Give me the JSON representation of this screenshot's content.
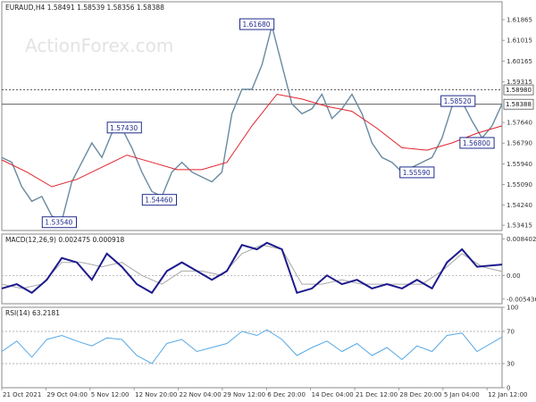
{
  "watermark": "ActionForex.com",
  "chart_data": {
    "type": "line",
    "colors": {
      "price": "#6a8aa0",
      "ma": "#e0222a",
      "macd": "#1c1a8c",
      "signal": "#a8a8a8",
      "rsi": "#55a8e6",
      "hline": "#4a4a4a",
      "annotation": "#1f2b8c"
    },
    "x_labels": [
      "21 Oct 2021",
      "29 Oct 04:00",
      "5 Nov 12:00",
      "12 Nov 20:00",
      "22 Nov 04:00",
      "29 Nov 12:00",
      "6 Dec 20:00",
      "14 Dec 04:00",
      "21 Dec 12:00",
      "28 Dec 20:00",
      "5 Jan 04:00",
      "12 Jan 12:00"
    ],
    "main": {
      "header": "EURAUD,H4  1.58491 1.58539 1.58356 1.58388",
      "ylim": [
        1.532,
        1.626
      ],
      "y_ticks": [
        "1.61865",
        "1.61015",
        "1.60165",
        "1.59315",
        "1.57640",
        "1.56790",
        "1.55940",
        "1.55090",
        "1.54240",
        "1.53415"
      ],
      "y_tick_values": [
        1.61865,
        1.61015,
        1.60165,
        1.59315,
        1.5764,
        1.5679,
        1.5594,
        1.5509,
        1.5424,
        1.53415
      ],
      "price_boxes": [
        "1.58980",
        "1.58388"
      ],
      "price_box_values": [
        1.5898,
        1.58388
      ],
      "hlines": [
        1.5898,
        1.58388
      ],
      "annotations": [
        {
          "label": "1.61680",
          "x": 0.51,
          "y": 1.6168
        },
        {
          "label": "1.57430",
          "x": 0.245,
          "y": 1.5743
        },
        {
          "label": "1.54460",
          "x": 0.315,
          "y": 1.5446
        },
        {
          "label": "1.53540",
          "x": 0.115,
          "y": 1.5354
        },
        {
          "label": "1.58520",
          "x": 0.912,
          "y": 1.5852
        },
        {
          "label": "1.56800",
          "x": 0.95,
          "y": 1.568
        },
        {
          "label": "1.55590",
          "x": 0.83,
          "y": 1.5559
        }
      ],
      "series": [
        {
          "name": "EURAUD",
          "x": [
            0,
            0.02,
            0.04,
            0.06,
            0.08,
            0.1,
            0.12,
            0.14,
            0.16,
            0.18,
            0.2,
            0.22,
            0.24,
            0.26,
            0.28,
            0.3,
            0.32,
            0.34,
            0.36,
            0.38,
            0.4,
            0.42,
            0.44,
            0.46,
            0.48,
            0.5,
            0.52,
            0.54,
            0.56,
            0.58,
            0.6,
            0.62,
            0.64,
            0.66,
            0.68,
            0.7,
            0.72,
            0.74,
            0.76,
            0.78,
            0.8,
            0.82,
            0.84,
            0.86,
            0.88,
            0.9,
            0.92,
            0.94,
            0.96,
            0.98,
            1.0
          ],
          "y": [
            1.562,
            1.56,
            1.55,
            1.544,
            1.546,
            1.538,
            1.536,
            1.552,
            1.56,
            1.568,
            1.562,
            1.572,
            1.574,
            1.566,
            1.556,
            1.548,
            1.546,
            1.556,
            1.56,
            1.556,
            1.554,
            1.552,
            1.556,
            1.58,
            1.59,
            1.59,
            1.6,
            1.616,
            1.6,
            1.584,
            1.58,
            1.582,
            1.588,
            1.578,
            1.582,
            1.588,
            1.58,
            1.568,
            1.562,
            1.56,
            1.556,
            1.558,
            1.56,
            1.562,
            1.57,
            1.583,
            1.585,
            1.577,
            1.57,
            1.575,
            1.584
          ]
        },
        {
          "name": "MA",
          "x": [
            0,
            0.05,
            0.1,
            0.15,
            0.2,
            0.25,
            0.3,
            0.35,
            0.4,
            0.45,
            0.5,
            0.55,
            0.6,
            0.65,
            0.7,
            0.75,
            0.8,
            0.85,
            0.9,
            0.95,
            1.0
          ],
          "y": [
            1.561,
            1.556,
            1.55,
            1.553,
            1.558,
            1.563,
            1.56,
            1.557,
            1.557,
            1.56,
            1.575,
            1.588,
            1.586,
            1.583,
            1.581,
            1.574,
            1.566,
            1.565,
            1.568,
            1.572,
            1.575
          ]
        }
      ]
    },
    "macd": {
      "header": "MACD(12,26,9) 0.002475 0.000918",
      "ylim": [
        -0.0065,
        0.0095
      ],
      "y_ticks": [
        "0.008402",
        "0.00",
        "-0.005436"
      ],
      "y_tick_values": [
        0.008402,
        0.0,
        -0.005436
      ],
      "zero_label": "0.00",
      "series": [
        {
          "name": "MACD",
          "x": [
            0,
            0.03,
            0.06,
            0.09,
            0.12,
            0.15,
            0.18,
            0.21,
            0.24,
            0.27,
            0.3,
            0.33,
            0.36,
            0.39,
            0.42,
            0.45,
            0.48,
            0.51,
            0.53,
            0.56,
            0.59,
            0.62,
            0.65,
            0.68,
            0.71,
            0.74,
            0.77,
            0.8,
            0.83,
            0.86,
            0.89,
            0.92,
            0.95,
            1.0
          ],
          "y": [
            -0.003,
            -0.002,
            -0.004,
            -0.001,
            0.004,
            0.003,
            -0.001,
            0.005,
            0.002,
            -0.002,
            -0.004,
            0.001,
            0.003,
            0.001,
            -0.001,
            0.001,
            0.007,
            0.006,
            0.0075,
            0.006,
            -0.004,
            -0.003,
            0.0,
            -0.002,
            -0.001,
            -0.003,
            -0.002,
            -0.003,
            -0.001,
            -0.003,
            0.003,
            0.006,
            0.002,
            0.0025
          ]
        },
        {
          "name": "Signal",
          "x": [
            0,
            0.04,
            0.08,
            0.12,
            0.16,
            0.2,
            0.24,
            0.28,
            0.32,
            0.36,
            0.4,
            0.44,
            0.48,
            0.52,
            0.56,
            0.6,
            0.64,
            0.68,
            0.72,
            0.76,
            0.8,
            0.84,
            0.88,
            0.92,
            0.96,
            1.0
          ],
          "y": [
            -0.002,
            -0.003,
            -0.002,
            0.003,
            0.003,
            0.002,
            0.003,
            0.0,
            -0.002,
            0.001,
            0.001,
            0.0,
            0.005,
            0.007,
            0.006,
            -0.002,
            -0.002,
            -0.001,
            -0.002,
            -0.002,
            -0.002,
            -0.002,
            0.001,
            0.005,
            0.002,
            0.0009
          ]
        }
      ]
    },
    "rsi": {
      "header": "RSI(14) 63.2181",
      "ylim": [
        0,
        100
      ],
      "y_ticks": [
        "100",
        "70",
        "30",
        "0"
      ],
      "y_tick_values": [
        100,
        70,
        30,
        0
      ],
      "levels": [
        70,
        30
      ],
      "series": [
        {
          "name": "RSI",
          "x": [
            0,
            0.03,
            0.06,
            0.09,
            0.12,
            0.15,
            0.18,
            0.21,
            0.24,
            0.27,
            0.3,
            0.33,
            0.36,
            0.39,
            0.42,
            0.45,
            0.48,
            0.51,
            0.53,
            0.56,
            0.59,
            0.62,
            0.65,
            0.68,
            0.71,
            0.74,
            0.77,
            0.8,
            0.83,
            0.86,
            0.89,
            0.92,
            0.95,
            1.0
          ],
          "y": [
            45,
            58,
            38,
            60,
            65,
            58,
            52,
            62,
            60,
            40,
            30,
            55,
            60,
            45,
            50,
            55,
            70,
            65,
            72,
            60,
            40,
            50,
            58,
            45,
            55,
            40,
            50,
            35,
            52,
            45,
            65,
            68,
            45,
            63
          ]
        }
      ]
    }
  }
}
